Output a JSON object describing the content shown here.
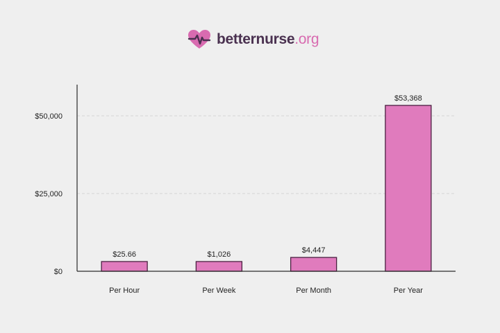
{
  "brand": {
    "name": "betternurse",
    "tld": ".org",
    "heart_color": "#d86bb0",
    "heart_dark_color": "#4a3150"
  },
  "chart_data": {
    "type": "bar",
    "categories": [
      "Per Hour",
      "Per Week",
      "Per Month",
      "Per Year"
    ],
    "values": [
      25.66,
      1026,
      4447,
      53368
    ],
    "data_labels": [
      "$25.66",
      "$1,026",
      "$4,447",
      "$53,368"
    ],
    "y_ticks": [
      0,
      25000,
      50000
    ],
    "y_tick_labels": [
      "$0",
      "$25,000",
      "$50,000"
    ],
    "ylim": [
      0,
      60000
    ],
    "grid": "horizontal dashed",
    "legend": "none",
    "bar_color": "#e07bbd",
    "bar_edge_color": "#4a2040"
  }
}
